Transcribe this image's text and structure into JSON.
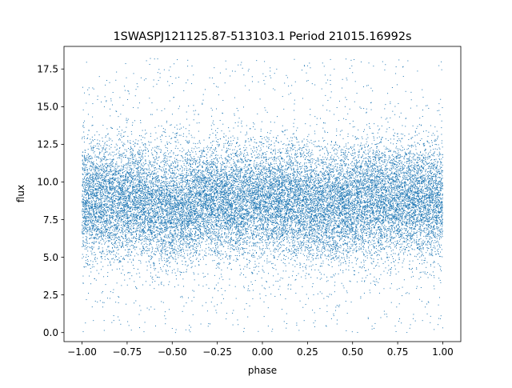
{
  "chart_data": {
    "type": "scatter",
    "title": "1SWASPJ121125.87-513103.1 Period 21015.16992s",
    "xlabel": "phase",
    "ylabel": "flux",
    "xlim": [
      -1.1,
      1.1
    ],
    "ylim": [
      -0.6,
      19.0
    ],
    "xticks": [
      -1.0,
      -0.75,
      -0.5,
      -0.25,
      0.0,
      0.25,
      0.5,
      0.75,
      1.0
    ],
    "xtick_labels": [
      "−1.00",
      "−0.75",
      "−0.50",
      "−0.25",
      "0.00",
      "0.25",
      "0.50",
      "0.75",
      "1.00"
    ],
    "yticks": [
      0.0,
      2.5,
      5.0,
      7.5,
      10.0,
      12.5,
      15.0,
      17.5
    ],
    "ytick_labels": [
      "0.0",
      "2.5",
      "5.0",
      "7.5",
      "10.0",
      "12.5",
      "15.0",
      "17.5"
    ],
    "grid": false,
    "series": [
      {
        "color": "#1f77b4",
        "x_range": [
          -1.0,
          1.0
        ],
        "y_range": [
          0.0,
          18.2
        ],
        "y_center": 8.8,
        "dense_band": [
          6.0,
          12.0
        ],
        "minima_phase": [
          -0.5,
          0.35
        ]
      }
    ]
  }
}
